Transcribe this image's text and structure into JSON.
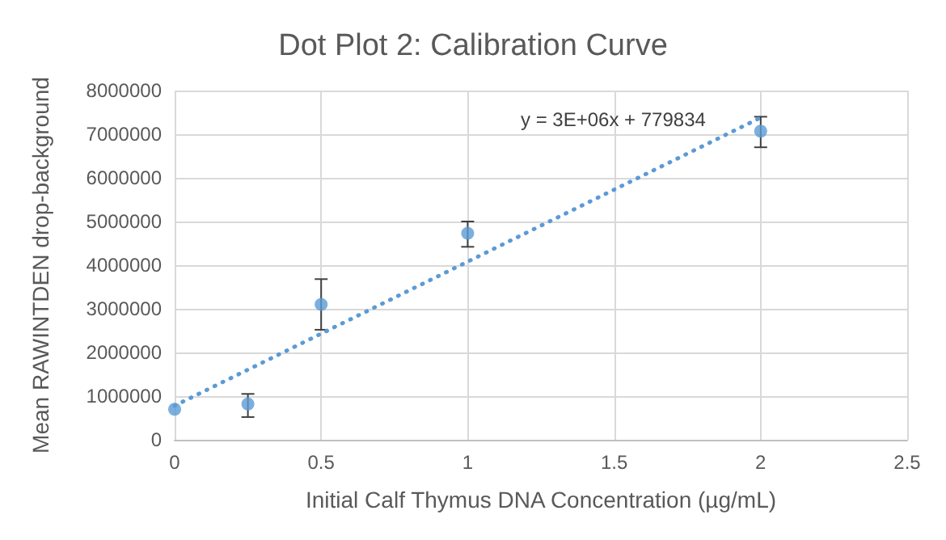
{
  "chart_data": {
    "type": "scatter",
    "title": "Dot Plot 2: Calibration Curve",
    "xlabel": "Initial Calf Thymus DNA Concentration (µg/mL)",
    "ylabel": "Mean RAWINTDEN drop-background",
    "x": [
      0,
      0.25,
      0.5,
      1,
      2
    ],
    "series": [
      {
        "color": "#5b9bd5",
        "marker": "circle",
        "values": [
          700000,
          820000,
          3100000,
          4730000,
          7070000
        ],
        "errors": [
          null,
          [
            520000,
            1050000
          ],
          [
            2520000,
            3680000
          ],
          [
            4420000,
            5000000
          ],
          [
            6700000,
            7400000
          ]
        ]
      },
      {
        "type": "line",
        "color": "#5b9bd5",
        "marker": "none",
        "line_style": "dotted",
        "x": [
          0,
          2
        ],
        "values": [
          780000,
          7380000
        ]
      }
    ],
    "annotations": [
      "y = 3E+06x + 779834"
    ],
    "xlim": [
      0,
      2.5
    ],
    "xticks": [
      0,
      0.5,
      1,
      1.5,
      2,
      2.5
    ],
    "ylim": [
      0,
      8000000
    ],
    "yticks": [
      0,
      1000000,
      2000000,
      3000000,
      4000000,
      5000000,
      6000000,
      7000000,
      8000000
    ],
    "grid": true
  }
}
